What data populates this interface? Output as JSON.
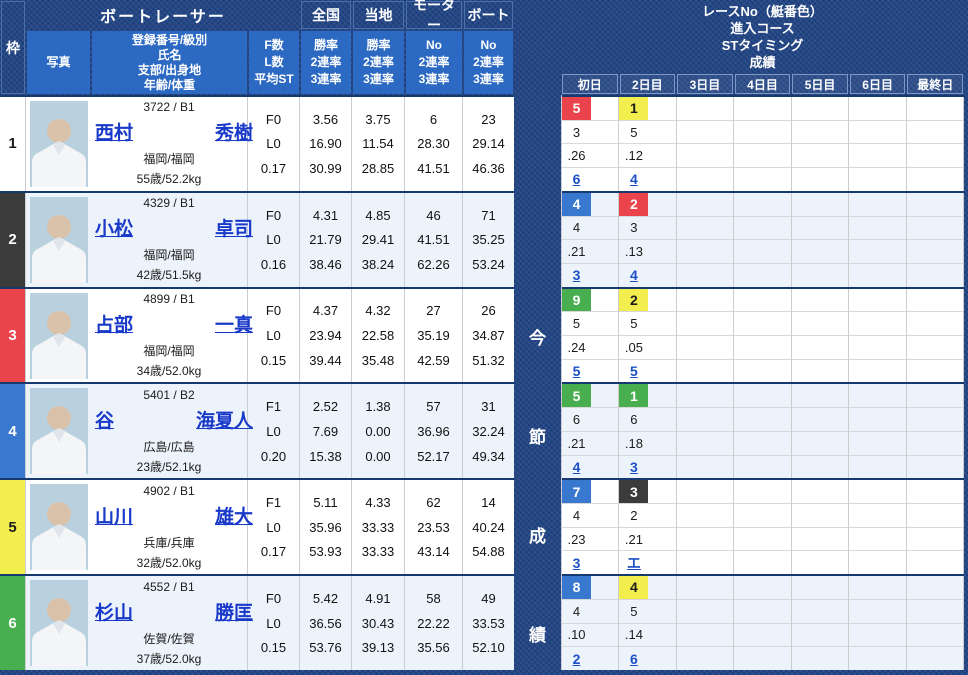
{
  "left_table": {
    "header": {
      "waku": "枠",
      "photo": "写真",
      "racer": "ボートレーサー",
      "racer_sub_lines": [
        "登録番号/級別",
        "氏名",
        "支部/出身地",
        "年齢/体重"
      ],
      "fl_lines": [
        "F数",
        "L数",
        "平均ST"
      ],
      "national": {
        "label": "全国",
        "sub": [
          "勝率",
          "2連率",
          "3連率"
        ]
      },
      "local": {
        "label": "当地",
        "sub": [
          "勝率",
          "2連率",
          "3連率"
        ]
      },
      "motor": {
        "label": "モーター",
        "sub": [
          "No",
          "2連率",
          "3連率"
        ]
      },
      "boat": {
        "label": "ボート",
        "sub": [
          "No",
          "2連率",
          "3連率"
        ]
      }
    },
    "racers": [
      {
        "waku": "1",
        "waku_color": "white",
        "reg": "3722 / B1",
        "name_last": "西村",
        "name_first": "秀樹",
        "branch": "福岡/福岡",
        "age_weight": "55歳/52.2kg",
        "f": "F0",
        "l": "L0",
        "st": "0.17",
        "national": [
          "3.56",
          "16.90",
          "30.99"
        ],
        "local": [
          "3.75",
          "11.54",
          "28.85"
        ],
        "motor": [
          "6",
          "28.30",
          "41.51"
        ],
        "boat": [
          "23",
          "29.14",
          "46.36"
        ]
      },
      {
        "waku": "2",
        "waku_color": "black",
        "reg": "4329 / B1",
        "name_last": "小松",
        "name_first": "卓司",
        "branch": "福岡/福岡",
        "age_weight": "42歳/51.5kg",
        "f": "F0",
        "l": "L0",
        "st": "0.16",
        "national": [
          "4.31",
          "21.79",
          "38.46"
        ],
        "local": [
          "4.85",
          "29.41",
          "38.24"
        ],
        "motor": [
          "46",
          "41.51",
          "62.26"
        ],
        "boat": [
          "71",
          "35.25",
          "53.24"
        ]
      },
      {
        "waku": "3",
        "waku_color": "red",
        "reg": "4899 / B1",
        "name_last": "占部",
        "name_first": "一真",
        "branch": "福岡/福岡",
        "age_weight": "34歳/52.0kg",
        "f": "F0",
        "l": "L0",
        "st": "0.15",
        "national": [
          "4.37",
          "23.94",
          "39.44"
        ],
        "local": [
          "4.32",
          "22.58",
          "35.48"
        ],
        "motor": [
          "27",
          "35.19",
          "42.59"
        ],
        "boat": [
          "26",
          "34.87",
          "51.32"
        ]
      },
      {
        "waku": "4",
        "waku_color": "blue",
        "reg": "5401 / B2",
        "name_last": "谷",
        "name_first": "海夏人",
        "branch": "広島/広島",
        "age_weight": "23歳/52.1kg",
        "f": "F1",
        "l": "L0",
        "st": "0.20",
        "national": [
          "2.52",
          "7.69",
          "15.38"
        ],
        "local": [
          "1.38",
          "0.00",
          "0.00"
        ],
        "motor": [
          "57",
          "36.96",
          "52.17"
        ],
        "boat": [
          "31",
          "32.24",
          "49.34"
        ]
      },
      {
        "waku": "5",
        "waku_color": "yellow",
        "reg": "4902 / B1",
        "name_last": "山川",
        "name_first": "雄大",
        "branch": "兵庫/兵庫",
        "age_weight": "32歳/52.0kg",
        "f": "F1",
        "l": "L0",
        "st": "0.17",
        "national": [
          "5.11",
          "35.96",
          "53.93"
        ],
        "local": [
          "4.33",
          "33.33",
          "33.33"
        ],
        "motor": [
          "62",
          "23.53",
          "43.14"
        ],
        "boat": [
          "14",
          "40.24",
          "54.88"
        ]
      },
      {
        "waku": "6",
        "waku_color": "green",
        "reg": "4552 / B1",
        "name_last": "杉山",
        "name_first": "勝匡",
        "branch": "佐賀/佐賀",
        "age_weight": "37歳/52.0kg",
        "f": "F0",
        "l": "L0",
        "st": "0.15",
        "national": [
          "5.42",
          "36.56",
          "53.76"
        ],
        "local": [
          "4.91",
          "30.43",
          "39.13"
        ],
        "motor": [
          "58",
          "22.22",
          "35.56"
        ],
        "boat": [
          "49",
          "33.53",
          "52.10"
        ]
      }
    ]
  },
  "series_label": [
    "今",
    "節",
    "成",
    "績"
  ],
  "results": {
    "header_lines": [
      "レースNo（艇番色）",
      "進入コース",
      "STタイミング",
      "成績"
    ],
    "days": [
      "初日",
      "2日目",
      "3日目",
      "4日目",
      "5日目",
      "6日目",
      "最終日"
    ],
    "rows": [
      {
        "days": [
          {
            "race_no": "5",
            "race_color": "red",
            "course": "3",
            "st": ".26",
            "result": "6"
          },
          {
            "race_no": "1",
            "race_color": "yellow",
            "course": "5",
            "st": ".12",
            "result": "4"
          },
          null,
          null,
          null,
          null,
          null
        ]
      },
      {
        "days": [
          {
            "race_no": "4",
            "race_color": "blue",
            "course": "4",
            "st": ".21",
            "result": "3"
          },
          {
            "race_no": "2",
            "race_color": "red",
            "course": "3",
            "st": ".13",
            "result": "4"
          },
          null,
          null,
          null,
          null,
          null
        ]
      },
      {
        "days": [
          {
            "race_no": "9",
            "race_color": "green",
            "course": "5",
            "st": ".24",
            "result": "5"
          },
          {
            "race_no": "2",
            "race_color": "yellow",
            "course": "5",
            "st": ".05",
            "result": "5"
          },
          null,
          null,
          null,
          null,
          null
        ]
      },
      {
        "days": [
          {
            "race_no": "5",
            "race_color": "green",
            "course": "6",
            "st": ".21",
            "result": "4"
          },
          {
            "race_no": "1",
            "race_color": "green",
            "course": "6",
            "st": ".18",
            "result": "3"
          },
          null,
          null,
          null,
          null,
          null
        ]
      },
      {
        "days": [
          {
            "race_no": "7",
            "race_color": "blue",
            "course": "4",
            "st": ".23",
            "result": "3"
          },
          {
            "race_no": "3",
            "race_color": "black",
            "course": "2",
            "st": ".21",
            "result": "エ"
          },
          null,
          null,
          null,
          null,
          null
        ]
      },
      {
        "days": [
          {
            "race_no": "8",
            "race_color": "blue",
            "course": "4",
            "st": ".10",
            "result": "2"
          },
          {
            "race_no": "4",
            "race_color": "yellow",
            "course": "5",
            "st": ".14",
            "result": "6"
          },
          null,
          null,
          null,
          null,
          null
        ]
      }
    ]
  },
  "colors": {
    "navy": "#1b3e7d",
    "header_blue": "#2b69c2",
    "row_alt": "#edf3fb",
    "link_blue": "#1939c8",
    "result_link": "#1c50c4",
    "boat_white": "#ffffff",
    "boat_black": "#3b3b3b",
    "boat_red": "#ea434b",
    "boat_blue": "#3878cf",
    "boat_yellow": "#f2ee4e",
    "boat_green": "#48ae50"
  }
}
